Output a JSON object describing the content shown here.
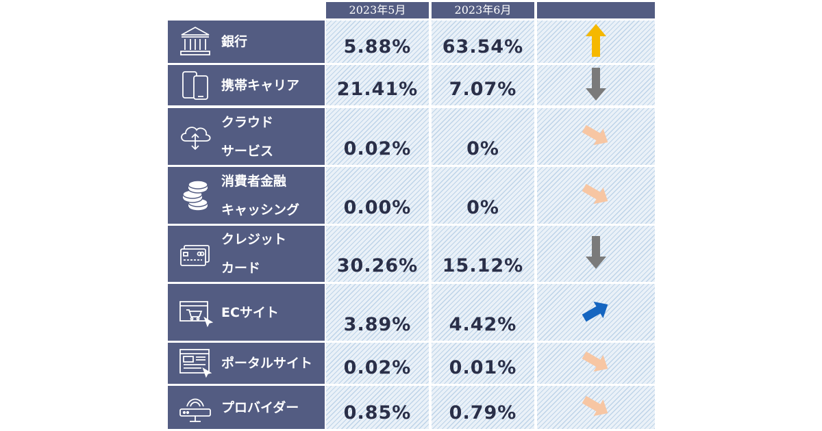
{
  "header": {
    "col_may": "2023年5月",
    "col_jun": "2023年6月",
    "col_trend": ""
  },
  "rows": [
    {
      "icon": "bank-icon",
      "lines": [
        "銀行"
      ],
      "may": "5.88%",
      "jun": "63.54%",
      "trend": "up",
      "trend_color": "#f5b800"
    },
    {
      "icon": "mobile-phones-icon",
      "lines": [
        "携帯キャリア"
      ],
      "may": "21.41%",
      "jun": "7.07%",
      "trend": "down",
      "trend_color": "#7a7a7a"
    },
    {
      "icon": "cloud-icon",
      "lines": [
        "クラウド",
        "サービス"
      ],
      "may": "0.02%",
      "jun": "0%",
      "trend": "slightly-down",
      "trend_color": "#f7c6a3"
    },
    {
      "icon": "coin-stack-icon",
      "lines": [
        "消費者金融",
        "キャッシング"
      ],
      "may": "0.00%",
      "jun": "0%",
      "trend": "slightly-down",
      "trend_color": "#f7c6a3"
    },
    {
      "icon": "credit-card-icon",
      "lines": [
        "クレジット",
        "カード"
      ],
      "may": "30.26%",
      "jun": "15.12%",
      "trend": "down",
      "trend_color": "#7a7a7a"
    },
    {
      "icon": "shopping-cart-icon",
      "lines": [
        "ECサイト"
      ],
      "may": "3.89%",
      "jun": "4.42%",
      "trend": "slightly-up",
      "trend_color": "#1565c0"
    },
    {
      "icon": "portal-site-icon",
      "lines": [
        "ポータルサイト"
      ],
      "may": "0.02%",
      "jun": "0.01%",
      "trend": "slightly-down",
      "trend_color": "#f7c6a3"
    },
    {
      "icon": "router-icon",
      "lines": [
        "プロバイダー"
      ],
      "may": "0.85%",
      "jun": "0.79%",
      "trend": "slightly-down",
      "trend_color": "#f7c6a3"
    }
  ]
}
